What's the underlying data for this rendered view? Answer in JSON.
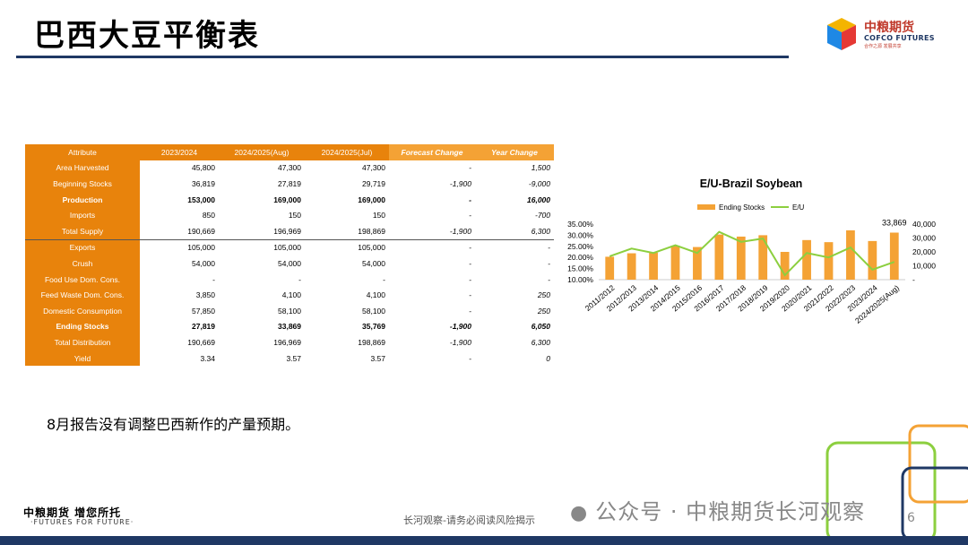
{
  "header": {
    "title": "巴西大豆平衡表"
  },
  "logo": {
    "cn": "中粮期货",
    "en": "COFCO FUTURES",
    "sub": "合作之源 发展共享"
  },
  "table": {
    "columns": [
      "Attribute",
      "2023/2024",
      "2024/2025(Aug)",
      "2024/2025(Jul)",
      "Forecast Change",
      "Year Change"
    ],
    "rows": [
      {
        "label": "Area Harvested",
        "v": [
          "45,800",
          "47,300",
          "47,300",
          "-",
          "1,500"
        ]
      },
      {
        "label": "Beginning Stocks",
        "v": [
          "36,819",
          "27,819",
          "29,719",
          "-1,900",
          "-9,000"
        ]
      },
      {
        "label": "Production",
        "v": [
          "153,000",
          "169,000",
          "169,000",
          "-",
          "16,000"
        ]
      },
      {
        "label": "Imports",
        "v": [
          "850",
          "150",
          "150",
          "-",
          "-700"
        ]
      },
      {
        "label": "Total Supply",
        "v": [
          "190,669",
          "196,969",
          "198,869",
          "-1,900",
          "6,300"
        ]
      },
      {
        "label": "Exports",
        "v": [
          "105,000",
          "105,000",
          "105,000",
          "-",
          "-"
        ]
      },
      {
        "label": "Crush",
        "v": [
          "54,000",
          "54,000",
          "54,000",
          "-",
          "-"
        ]
      },
      {
        "label": "Food Use Dom. Cons.",
        "v": [
          "-",
          "-",
          "-",
          "-",
          "-"
        ]
      },
      {
        "label": "Feed Waste Dom. Cons.",
        "v": [
          "3,850",
          "4,100",
          "4,100",
          "-",
          "250"
        ]
      },
      {
        "label": "Domestic Consumption",
        "v": [
          "57,850",
          "58,100",
          "58,100",
          "-",
          "250"
        ]
      },
      {
        "label": "Ending Stocks",
        "v": [
          "27,819",
          "33,869",
          "35,769",
          "-1,900",
          "6,050"
        ]
      },
      {
        "label": "Total Distribution",
        "v": [
          "190,669",
          "196,969",
          "198,869",
          "-1,900",
          "6,300"
        ]
      },
      {
        "label": "Yield",
        "v": [
          "3.34",
          "3.57",
          "3.57",
          "-",
          "0"
        ]
      }
    ]
  },
  "chart_data": {
    "type": "bar",
    "title": "E/U-Brazil Soybean",
    "categories": [
      "2011/2012",
      "2012/2013",
      "2013/2014",
      "2014/2015",
      "2015/2016",
      "2016/2017",
      "2017/2018",
      "2018/2019",
      "2019/2020",
      "2020/2021",
      "2021/2022",
      "2022/2023",
      "2023/2024",
      "2024/2025(Aug)"
    ],
    "series": [
      {
        "name": "Ending Stocks",
        "axis": "right",
        "type": "bar",
        "color": "#f4a235",
        "values": [
          16500,
          19000,
          19500,
          24500,
          23500,
          32500,
          31000,
          32000,
          20000,
          28500,
          27000,
          35500,
          27819,
          33869
        ]
      },
      {
        "name": "E/U",
        "axis": "left",
        "type": "line",
        "color": "#8ccf3f",
        "values": [
          20.5,
          24.0,
          22.0,
          25.5,
          22.0,
          31.5,
          27.0,
          28.5,
          12.0,
          22.0,
          20.0,
          24.5,
          14.5,
          18.0
        ]
      }
    ],
    "left_axis": {
      "ticks": [
        "10.00%",
        "15.00%",
        "20.00%",
        "25.00%",
        "30.00%",
        "35.00%"
      ],
      "ylim": [
        10,
        35
      ]
    },
    "right_axis": {
      "ticks": [
        "-",
        "10,000",
        "20,000",
        "30,000",
        "40,000"
      ],
      "ylim": [
        0,
        40000
      ]
    },
    "annotation": "33,869",
    "legend_position": "top"
  },
  "note": "8月报告没有调整巴西新作的产量预期。",
  "footer": {
    "logo": "中粮期货 增您所托",
    "sub": "·FUTURES FOR FUTURE·",
    "disclaimer": "长河观察-请务必阅读风险揭示",
    "wechat": "公众号 · 中粮期货长河观察",
    "page": "6"
  }
}
